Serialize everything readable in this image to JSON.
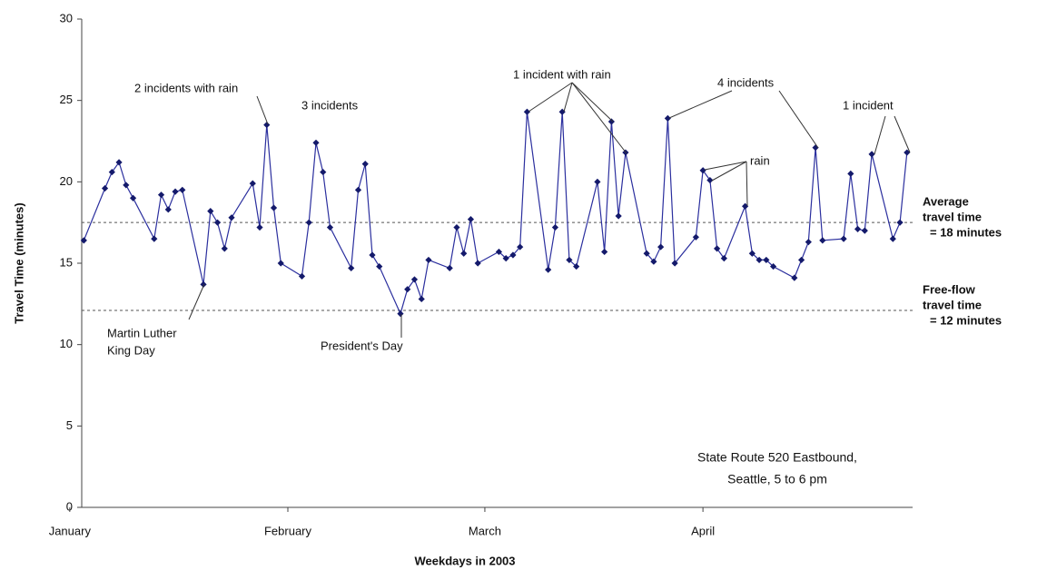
{
  "chart_data": {
    "type": "line",
    "x_label": "Weekdays in 2003",
    "y_label": "Travel Time (minutes)",
    "color": "#2b2f9e",
    "marker_color": "#141a6b",
    "x": [
      3,
      6,
      7,
      8,
      9,
      10,
      13,
      14,
      15,
      16,
      17,
      20,
      21,
      22,
      23,
      24,
      27,
      28,
      29,
      30,
      31,
      34,
      35,
      36,
      37,
      38,
      41,
      42,
      43,
      44,
      45,
      48,
      49,
      50,
      51,
      52,
      55,
      56,
      57,
      58,
      59,
      62,
      63,
      64,
      65,
      66,
      69,
      70,
      71,
      72,
      73,
      76,
      77,
      78,
      79,
      80,
      83,
      84,
      85,
      86,
      87,
      90,
      91,
      92,
      93,
      94,
      97,
      98,
      99,
      100,
      101,
      104,
      105,
      106,
      107,
      108,
      111,
      112,
      113,
      114,
      115,
      118,
      119,
      120
    ],
    "values": [
      16.4,
      19.6,
      20.6,
      21.2,
      19.8,
      19.0,
      16.5,
      19.2,
      18.3,
      19.4,
      19.5,
      13.7,
      18.2,
      17.5,
      15.9,
      17.8,
      19.9,
      17.2,
      23.5,
      18.4,
      15.0,
      14.2,
      17.5,
      22.4,
      20.6,
      17.2,
      14.7,
      19.5,
      21.1,
      15.5,
      14.8,
      11.9,
      13.4,
      14.0,
      12.8,
      15.2,
      14.7,
      17.2,
      15.6,
      17.7,
      15.0,
      15.7,
      15.3,
      15.5,
      16.0,
      24.3,
      14.6,
      17.2,
      24.3,
      15.2,
      14.8,
      20.0,
      15.7,
      23.7,
      17.9,
      21.8,
      15.6,
      15.1,
      16.0,
      23.9,
      15.0,
      16.6,
      20.7,
      20.1,
      15.9,
      15.3,
      18.5,
      15.6,
      15.2,
      15.2,
      14.8,
      14.1,
      15.2,
      16.3,
      22.1,
      16.4,
      16.5,
      20.5,
      17.1,
      17.0,
      21.7,
      16.5,
      17.5,
      21.8
    ],
    "xlim": [
      2.7,
      120.8
    ],
    "xticks": [
      {
        "value": 1,
        "label": "January"
      },
      {
        "value": 32,
        "label": "February"
      },
      {
        "value": 60,
        "label": "March"
      },
      {
        "value": 91,
        "label": "April"
      }
    ],
    "ylim": [
      0,
      30
    ],
    "yticks": [
      0,
      5,
      10,
      15,
      20,
      25,
      30
    ],
    "reference_lines": [
      {
        "value": 17.5,
        "label": [
          "Average",
          "travel time",
          "= 18 minutes"
        ]
      },
      {
        "value": 12.1,
        "label": [
          "Free-flow",
          "travel time",
          "= 12 minutes"
        ]
      }
    ],
    "annotations": [
      [
        "2 incidents with rain"
      ],
      [
        "3 incidents"
      ],
      [
        "1 incident with rain"
      ],
      [
        "4 incidents"
      ],
      [
        "rain"
      ],
      [
        "1 incident"
      ],
      [
        "Martin Luther",
        "King Day"
      ],
      [
        "President's Day"
      ]
    ],
    "note": [
      "State Route 520 Eastbound,",
      "Seattle, 5 to 6 pm"
    ]
  }
}
